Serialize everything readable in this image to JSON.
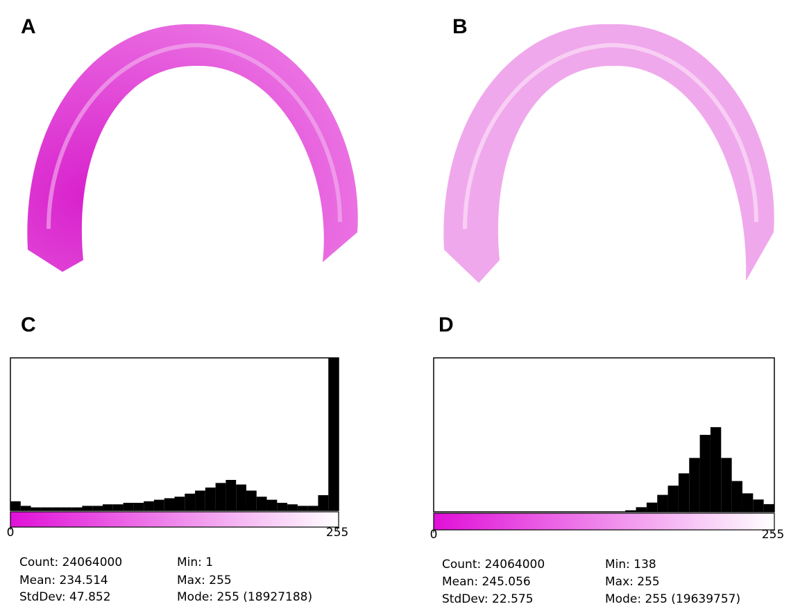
{
  "panel_labels": [
    "A",
    "B",
    "C",
    "D"
  ],
  "chart_data": [
    {
      "type": "histogram",
      "color": "#000000",
      "bins": [
        0,
        8,
        16,
        24,
        32,
        40,
        48,
        56,
        64,
        72,
        80,
        88,
        96,
        104,
        112,
        120,
        128,
        136,
        144,
        152,
        160,
        168,
        176,
        184,
        192,
        200,
        208,
        216,
        224,
        232,
        240,
        248,
        256
      ],
      "values": [
        6,
        3,
        2,
        2,
        2,
        2,
        2,
        3,
        3,
        4,
        4,
        5,
        5,
        6,
        7,
        8,
        9,
        11,
        13,
        15,
        18,
        20,
        17,
        13,
        9,
        7,
        5,
        4,
        3,
        3,
        10,
        100
      ],
      "xlim": [
        0,
        256
      ],
      "xticks": [
        0,
        255
      ],
      "ylim": [
        0,
        100
      ],
      "colormap": [
        "#e010d8",
        "#ffffff"
      ],
      "stats": [
        "Count: 24064000",
        "Mean: 234.514",
        "StdDev: 47.852",
        "Min: 1",
        "Max: 255",
        "Mode: 255 (18927188)"
      ]
    },
    {
      "type": "histogram",
      "color": "#000000",
      "bins": [
        0,
        8,
        16,
        24,
        32,
        40,
        48,
        56,
        64,
        72,
        80,
        88,
        96,
        104,
        112,
        120,
        128,
        136,
        144,
        152,
        160,
        168,
        176,
        184,
        192,
        200,
        208,
        216,
        224,
        232,
        240,
        248,
        256
      ],
      "values": [
        0,
        0,
        0,
        0,
        0,
        0,
        0,
        0,
        0,
        0,
        0,
        0,
        0,
        0,
        0,
        0,
        0,
        0,
        1,
        3,
        6,
        11,
        17,
        25,
        35,
        50,
        55,
        35,
        20,
        12,
        8,
        5
      ],
      "xlim": [
        0,
        256
      ],
      "xticks": [
        0,
        255
      ],
      "ylim": [
        0,
        100
      ],
      "colormap": [
        "#e010d8",
        "#ffffff"
      ],
      "stats": [
        "Count: 24064000",
        "Mean: 245.056",
        "StdDev: 22.575",
        "Min: 138",
        "Max: 255",
        "Mode: 255 (19639757)"
      ]
    }
  ]
}
